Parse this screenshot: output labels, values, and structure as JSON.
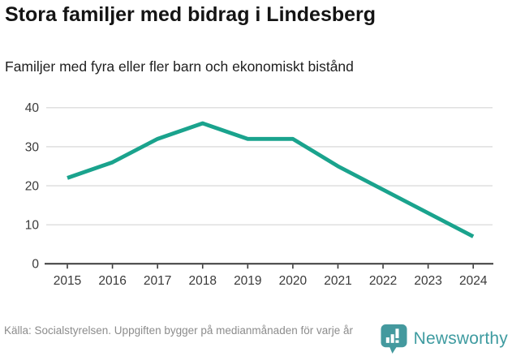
{
  "header": {
    "title": "Stora familjer med bidrag i Lindesberg",
    "subtitle": "Familjer med fyra eller fler barn och ekonomiskt bistånd"
  },
  "footer": {
    "source": "Källa: Socialstyrelsen. Uppgiften bygger på medianmånaden för varje år",
    "brand": "Newsworthy"
  },
  "colors": {
    "line": "#1AA38D",
    "grid": "#dcdcdc",
    "axis": "#3a3a3a",
    "tick_label": "#3a3a3a",
    "title": "#141414",
    "subtitle": "#1f1f1f",
    "source_text": "#8c8c8c",
    "brand_teal": "#3E9BA0",
    "logo_bubble": "#44999E",
    "background": "#ffffff"
  },
  "chart_data": {
    "type": "line",
    "title": "Stora familjer med bidrag i Lindesberg",
    "subtitle": "Familjer med fyra eller fler barn och ekonomiskt bistånd",
    "x": [
      2015,
      2016,
      2017,
      2018,
      2019,
      2020,
      2021,
      2022,
      2023,
      2024
    ],
    "series": [
      {
        "name": "Familjer med fyra eller fler barn och ekonomiskt bistånd",
        "values": [
          22,
          26,
          32,
          36,
          32,
          32,
          25,
          19,
          13,
          7
        ]
      }
    ],
    "xlabel": "",
    "ylabel": "",
    "ylim": [
      0,
      40
    ],
    "yticks": [
      0,
      10,
      20,
      30,
      40
    ],
    "xtick_labels": [
      "2015",
      "2016",
      "2017",
      "2018",
      "2019",
      "2020",
      "2021",
      "2022",
      "2023",
      "2024"
    ],
    "grid": true,
    "legend": "none",
    "line_color": "#1AA38D",
    "source": "Källa: Socialstyrelsen. Uppgiften bygger på medianmånaden för varje år"
  }
}
